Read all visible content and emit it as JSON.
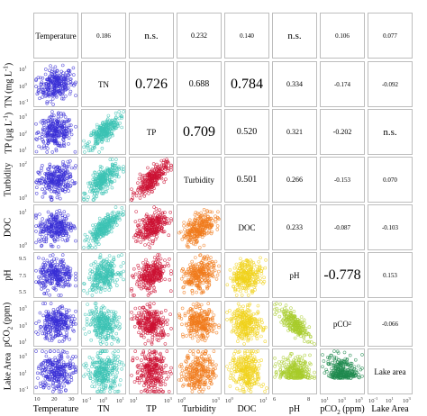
{
  "chart_data": {
    "type": "scatter",
    "variables": [
      "Temperature",
      "TN",
      "TP",
      "Turbidity",
      "DOC",
      "pH",
      "pCO2",
      "Lake Area"
    ],
    "diagonal_labels": [
      "Temperature",
      "TN",
      "TP",
      "Turbidity",
      "DOC",
      "pH",
      "pCO2",
      "Lake area"
    ],
    "diagonal_label_html": [
      "Temperature",
      "TN",
      "TP",
      "Turbidity",
      "DOC",
      "pH",
      "pCO<sub>2</sub>",
      "Lake area"
    ],
    "x_axis_labels": [
      "Temperature",
      "TN",
      "TP",
      "Turbidity",
      "DOC",
      "pH",
      "pCO2 (ppm)",
      "Lake Area"
    ],
    "x_axis_label_html": [
      "Temperature",
      "TN",
      "TP",
      "Turbidity",
      "DOC",
      "pH",
      "pCO<sub>2</sub> (ppm)",
      "Lake Area"
    ],
    "y_axis_labels": [
      "TN (mg L-1)",
      "TP (µg L-1)",
      "Turbidity",
      "DOC",
      "pH",
      "pCO2 (ppm)",
      "Lake Area"
    ],
    "y_axis_label_html": [
      "TN (mg L<sup>-1</sup>)",
      "TP (µg L<sup>-1</sup>)",
      "Turbidity",
      "DOC",
      "pH",
      "pCO<sub>2</sub> (ppm)",
      "Lake Area"
    ],
    "series_colors": [
      "#3a2fd6",
      "#3cc3b4",
      "#cc1133",
      "#f07a1c",
      "#f0d21a",
      "#a8cc2a",
      "#1e8a4e"
    ],
    "correlations": [
      {
        "row": 0,
        "col": 1,
        "value": "0.186"
      },
      {
        "row": 0,
        "col": 2,
        "value": "n.s."
      },
      {
        "row": 0,
        "col": 3,
        "value": "0.232"
      },
      {
        "row": 0,
        "col": 4,
        "value": "0.140"
      },
      {
        "row": 0,
        "col": 5,
        "value": "n.s."
      },
      {
        "row": 0,
        "col": 6,
        "value": "0.106"
      },
      {
        "row": 0,
        "col": 7,
        "value": "0.077"
      },
      {
        "row": 1,
        "col": 2,
        "value": "0.726"
      },
      {
        "row": 1,
        "col": 3,
        "value": "0.688"
      },
      {
        "row": 1,
        "col": 4,
        "value": "0.784"
      },
      {
        "row": 1,
        "col": 5,
        "value": "0.334"
      },
      {
        "row": 1,
        "col": 6,
        "value": "-0.174"
      },
      {
        "row": 1,
        "col": 7,
        "value": "-0.092"
      },
      {
        "row": 2,
        "col": 3,
        "value": "0.709"
      },
      {
        "row": 2,
        "col": 4,
        "value": "0.520"
      },
      {
        "row": 2,
        "col": 5,
        "value": "0.321"
      },
      {
        "row": 2,
        "col": 6,
        "value": "-0.202"
      },
      {
        "row": 2,
        "col": 7,
        "value": "n.s."
      },
      {
        "row": 3,
        "col": 4,
        "value": "0.501"
      },
      {
        "row": 3,
        "col": 5,
        "value": "0.266"
      },
      {
        "row": 3,
        "col": 6,
        "value": "-0.153"
      },
      {
        "row": 3,
        "col": 7,
        "value": "0.070"
      },
      {
        "row": 4,
        "col": 5,
        "value": "0.233"
      },
      {
        "row": 4,
        "col": 6,
        "value": "-0.087"
      },
      {
        "row": 4,
        "col": 7,
        "value": "-0.103"
      },
      {
        "row": 5,
        "col": 6,
        "value": "-0.778"
      },
      {
        "row": 5,
        "col": 7,
        "value": "0.153"
      },
      {
        "row": 6,
        "col": 7,
        "value": "-0.066"
      }
    ],
    "x_tick_labels": [
      [
        "10",
        "20",
        "30"
      ],
      [
        "10-1",
        "100",
        "101"
      ],
      [
        "101",
        "103"
      ],
      [
        "100",
        "103"
      ],
      [
        "100",
        "101"
      ],
      [
        "6",
        "8"
      ],
      [
        "101",
        "103",
        "105"
      ],
      [
        "10-1",
        "101",
        "103"
      ]
    ],
    "y_tick_labels": [
      [],
      [
        "101",
        "100",
        "10-1"
      ],
      [
        "103",
        "102",
        "101"
      ],
      [
        "102",
        "100"
      ],
      [
        "101",
        "100"
      ],
      [
        "9.5",
        "7.5",
        "5.5"
      ],
      [
        "105",
        "103",
        "101"
      ],
      [
        "103",
        "101",
        "10-1"
      ]
    ]
  }
}
